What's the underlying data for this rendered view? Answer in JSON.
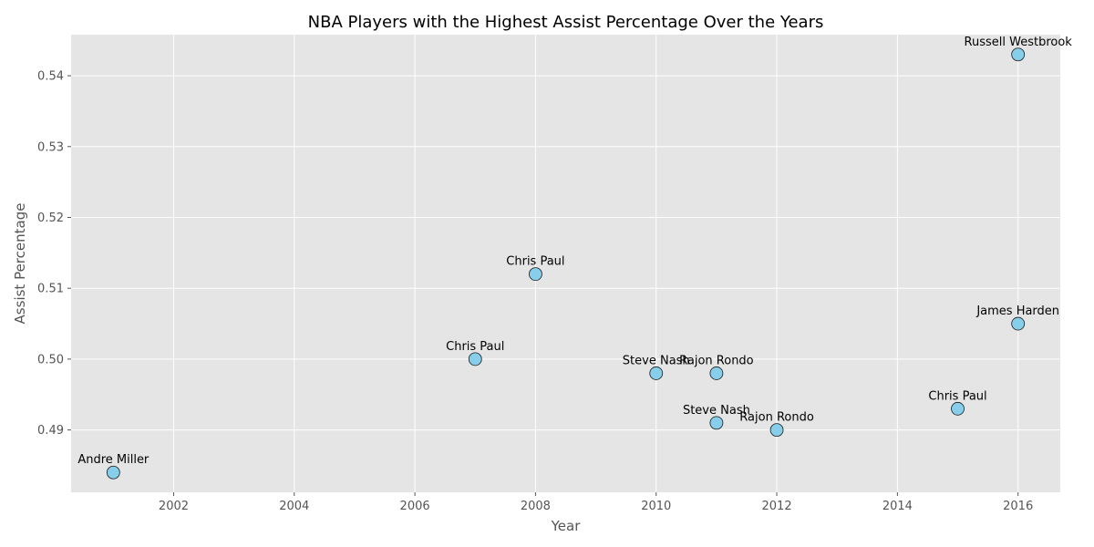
{
  "chart_data": {
    "type": "scatter",
    "title": "NBA Players with the Highest Assist Percentage Over the Years",
    "xlabel": "Year",
    "ylabel": "Assist Percentage",
    "xlim": [
      2000.3,
      2016.7
    ],
    "ylim": [
      0.4812,
      0.5458
    ],
    "xticks": [
      2002,
      2004,
      2006,
      2008,
      2010,
      2012,
      2014,
      2016
    ],
    "yticks": [
      0.49,
      0.5,
      0.51,
      0.52,
      0.53,
      0.54
    ],
    "xtick_labels": [
      "2002",
      "2004",
      "2006",
      "2008",
      "2010",
      "2012",
      "2014",
      "2016"
    ],
    "ytick_labels": [
      "0.49",
      "0.50",
      "0.51",
      "0.52",
      "0.53",
      "0.54"
    ],
    "grid": true,
    "points": [
      {
        "x": 2001,
        "y": 0.484,
        "label": "Andre Miller"
      },
      {
        "x": 2007,
        "y": 0.5,
        "label": "Chris Paul"
      },
      {
        "x": 2008,
        "y": 0.512,
        "label": "Chris Paul"
      },
      {
        "x": 2010,
        "y": 0.498,
        "label": "Steve Nash"
      },
      {
        "x": 2011,
        "y": 0.498,
        "label": "Rajon Rondo"
      },
      {
        "x": 2011,
        "y": 0.491,
        "label": "Steve Nash"
      },
      {
        "x": 2012,
        "y": 0.49,
        "label": "Rajon Rondo"
      },
      {
        "x": 2015,
        "y": 0.493,
        "label": "Chris Paul"
      },
      {
        "x": 2016,
        "y": 0.505,
        "label": "James Harden"
      },
      {
        "x": 2016,
        "y": 0.543,
        "label": "Russell Westbrook"
      }
    ],
    "colors": {
      "plot_background": "#e5e5e5",
      "grid": "#ffffff",
      "marker_fill": "#87ceeb",
      "marker_edge": "#1a1a1a"
    }
  }
}
